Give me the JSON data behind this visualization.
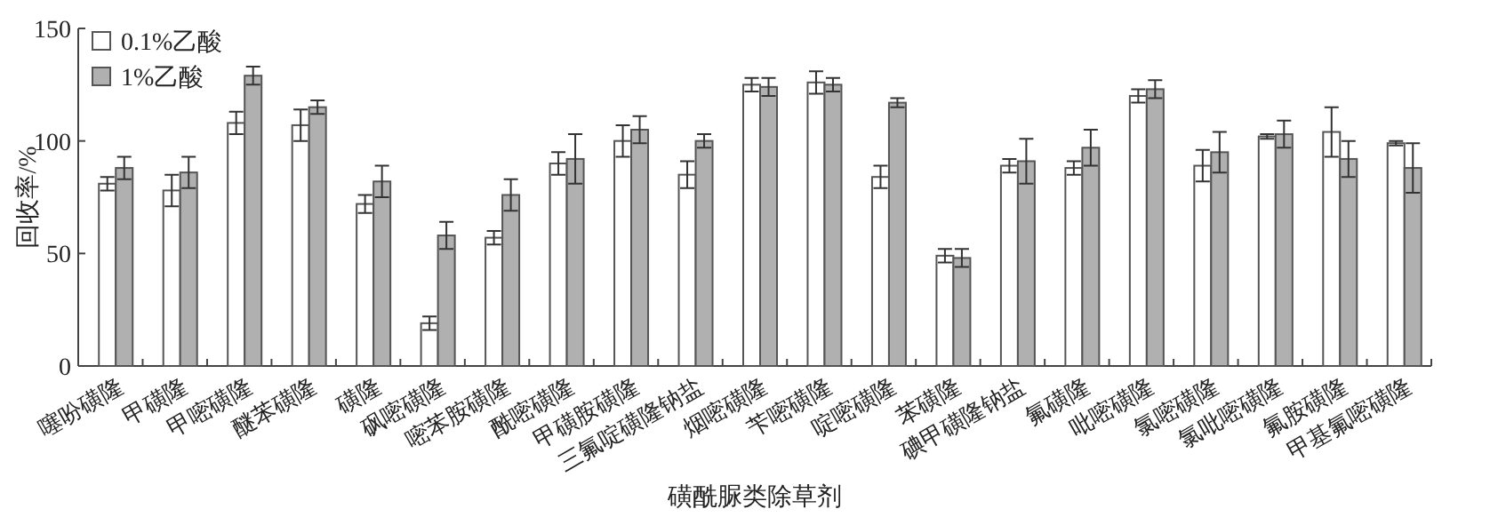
{
  "chart_data": {
    "type": "bar",
    "xlabel": "磺酰脲类除草剂",
    "ylabel": "回收率/%",
    "categories": [
      "噻吩磺隆",
      "甲磺隆",
      "甲嘧磺隆",
      "醚苯磺隆",
      "磺隆",
      "砜嘧磺隆",
      "嘧苯胺磺隆",
      "酰嘧磺隆",
      "甲磺胺磺隆",
      "三氟啶磺隆钠盐",
      "烟嘧磺隆",
      "苄嘧磺隆",
      "啶嘧磺隆",
      "苯磺隆",
      "碘甲磺隆钠盐",
      "氟磺隆",
      "吡嘧磺隆",
      "氯嘧磺隆",
      "氯吡嘧磺隆",
      "氟胺磺隆",
      "甲基氟嘧磺隆"
    ],
    "series": [
      {
        "name": "0.1%乙酸",
        "color": "#ffffff",
        "values": [
          81,
          78,
          108,
          107,
          72,
          19,
          57,
          90,
          100,
          85,
          125,
          126,
          84,
          49,
          89,
          88,
          120,
          89,
          102,
          104,
          99
        ],
        "errors": [
          3,
          7,
          5,
          7,
          4,
          3,
          3,
          5,
          7,
          6,
          3,
          5,
          5,
          3,
          3,
          3,
          3,
          7,
          1,
          11,
          1
        ]
      },
      {
        "name": "1%乙酸",
        "color": "#b0b0b0",
        "values": [
          88,
          86,
          129,
          115,
          82,
          58,
          76,
          92,
          105,
          100,
          124,
          125,
          117,
          48,
          91,
          97,
          123,
          95,
          103,
          92,
          88
        ],
        "errors": [
          5,
          7,
          4,
          3,
          7,
          6,
          7,
          11,
          6,
          3,
          4,
          3,
          2,
          4,
          10,
          8,
          4,
          9,
          6,
          8,
          11
        ]
      }
    ],
    "ylim": [
      0,
      150
    ],
    "yticks": [
      0,
      50,
      100,
      150
    ],
    "legend": "top left"
  }
}
